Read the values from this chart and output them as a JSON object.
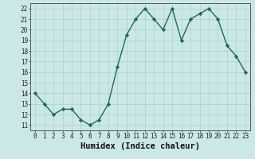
{
  "x": [
    0,
    1,
    2,
    3,
    4,
    5,
    6,
    7,
    8,
    9,
    10,
    11,
    12,
    13,
    14,
    15,
    16,
    17,
    18,
    19,
    20,
    21,
    22,
    23
  ],
  "y": [
    14.0,
    13.0,
    12.0,
    12.5,
    12.5,
    11.5,
    11.0,
    11.5,
    13.0,
    16.5,
    19.5,
    21.0,
    22.0,
    21.0,
    20.0,
    22.0,
    19.0,
    21.0,
    21.5,
    22.0,
    21.0,
    18.5,
    17.5,
    16.0
  ],
  "xlabel": "Humidex (Indice chaleur)",
  "xlim": [
    -0.5,
    23.5
  ],
  "ylim": [
    10.5,
    22.5
  ],
  "yticks": [
    11,
    12,
    13,
    14,
    15,
    16,
    17,
    18,
    19,
    20,
    21,
    22
  ],
  "xticks": [
    0,
    1,
    2,
    3,
    4,
    5,
    6,
    7,
    8,
    9,
    10,
    11,
    12,
    13,
    14,
    15,
    16,
    17,
    18,
    19,
    20,
    21,
    22,
    23
  ],
  "line_color": "#1a6b5a",
  "marker_color": "#1a6b5a",
  "bg_color": "#cce8e6",
  "grid_color": "#afd4d2",
  "tick_label_fontsize": 5.5,
  "xlabel_fontsize": 7.5
}
